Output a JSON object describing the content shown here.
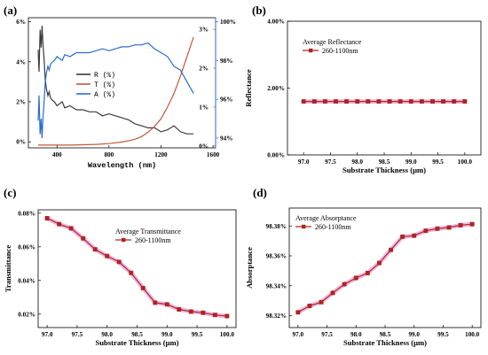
{
  "colors": {
    "R": "#3a3a3a",
    "T": "#c0573a",
    "A": "#2d6bd0",
    "dark_red": "#a52a2a",
    "marker_fill": "#b22222",
    "halo": "#f2b8e0"
  },
  "chart_data": [
    {
      "id": "a",
      "panel_label": "(a)",
      "type": "line",
      "xlabel": "Wavelength (nm)",
      "xlim": [
        180,
        1620
      ],
      "xticks": [
        "400",
        "800",
        "1200",
        "1600"
      ],
      "left_axis": {
        "ylim": [
          -0.3,
          6.2
        ],
        "ticks": [
          "0%",
          "2%",
          "4%",
          "6%"
        ]
      },
      "t_axis": {
        "ylim": [
          -0.05,
          3.3
        ],
        "ticks": [
          "0%",
          "1%",
          "2%",
          "3%"
        ]
      },
      "a_axis": {
        "ylim": [
          93.5,
          100.2
        ],
        "ticks": [
          "94%",
          "96%",
          "98%",
          "100%"
        ]
      },
      "legend_position": "center",
      "series": [
        {
          "name": "R (%)",
          "axis": "left",
          "color": "#3a3a3a",
          "x": [
            255,
            262,
            270,
            278,
            285,
            292,
            300,
            310,
            320,
            330,
            340,
            350,
            360,
            380,
            400,
            420,
            440,
            460,
            500,
            550,
            600,
            650,
            700,
            750,
            800,
            850,
            900,
            950,
            1000,
            1050,
            1100,
            1150,
            1200,
            1250,
            1300,
            1350,
            1400,
            1450
          ],
          "y": [
            4.6,
            3.5,
            5.6,
            4.7,
            5.8,
            4.9,
            4.2,
            3.1,
            2.6,
            2.3,
            2.5,
            2.2,
            2.1,
            2.0,
            1.8,
            1.9,
            2.0,
            1.7,
            1.8,
            1.6,
            1.6,
            1.5,
            1.5,
            1.3,
            1.4,
            1.3,
            1.2,
            1.1,
            0.9,
            0.8,
            0.7,
            0.7,
            0.5,
            0.6,
            0.8,
            0.5,
            0.4,
            0.4
          ]
        },
        {
          "name": "T (%)",
          "axis": "t",
          "color": "#c0573a",
          "x": [
            255,
            300,
            400,
            500,
            600,
            700,
            800,
            900,
            950,
            1000,
            1050,
            1100,
            1150,
            1200,
            1250,
            1300,
            1350,
            1400,
            1450
          ],
          "y": [
            0.02,
            0.02,
            0.02,
            0.02,
            0.03,
            0.04,
            0.06,
            0.1,
            0.13,
            0.17,
            0.24,
            0.35,
            0.5,
            0.7,
            1.0,
            1.35,
            1.8,
            2.3,
            2.8
          ]
        },
        {
          "name": "A (%)",
          "axis": "a",
          "color": "#2d6bd0",
          "x": [
            255,
            262,
            270,
            278,
            285,
            292,
            300,
            310,
            320,
            330,
            340,
            350,
            360,
            380,
            400,
            420,
            440,
            460,
            500,
            550,
            600,
            650,
            700,
            750,
            800,
            850,
            900,
            950,
            1000,
            1050,
            1100,
            1150,
            1200,
            1250,
            1300,
            1350,
            1400,
            1450
          ],
          "y": [
            94.9,
            96.2,
            94.2,
            95.0,
            94.0,
            95.0,
            95.8,
            96.9,
            97.4,
            97.7,
            97.5,
            97.8,
            97.9,
            98.0,
            98.2,
            98.1,
            98.0,
            98.3,
            98.2,
            98.4,
            98.4,
            98.4,
            98.5,
            98.6,
            98.5,
            98.6,
            98.7,
            98.7,
            98.8,
            98.8,
            98.9,
            98.6,
            98.4,
            98.2,
            97.7,
            97.5,
            96.9,
            96.3
          ]
        }
      ]
    },
    {
      "id": "b",
      "panel_label": "(b)",
      "type": "line",
      "xlabel": "Substrate Thickness (μm)",
      "ylabel": "Reflectance",
      "xlim": [
        96.7,
        100.3
      ],
      "ylim": [
        0.0,
        4.0
      ],
      "xticks": [
        "97.0",
        "97.5",
        "98.0",
        "98.5",
        "99.0",
        "99.5",
        "100.0"
      ],
      "yticks": [
        "0.00%",
        "2.00%",
        "4.00%"
      ],
      "legend_title": "Average Reflectance",
      "legend_position": "top-left",
      "series": [
        {
          "name": "260-1100nm",
          "x": [
            97.0,
            97.2,
            97.4,
            97.6,
            97.8,
            98.0,
            98.2,
            98.4,
            98.6,
            98.8,
            99.0,
            99.2,
            99.4,
            99.6,
            99.8,
            100.0
          ],
          "y": [
            1.6,
            1.6,
            1.6,
            1.6,
            1.6,
            1.6,
            1.6,
            1.6,
            1.6,
            1.6,
            1.6,
            1.6,
            1.6,
            1.6,
            1.6,
            1.6
          ]
        }
      ]
    },
    {
      "id": "c",
      "panel_label": "(c)",
      "type": "line",
      "xlabel": "Substrate Thickness (μm)",
      "ylabel": "Transmittance",
      "xlim": [
        96.85,
        100.15
      ],
      "ylim": [
        0.012,
        0.082
      ],
      "xticks": [
        "97.0",
        "97.5",
        "98.0",
        "98.5",
        "99.0",
        "99.5",
        "100.0"
      ],
      "yticks": [
        "0.02%",
        "0.04%",
        "0.06%",
        "0.08%"
      ],
      "legend_title": "Average Transmittance",
      "legend_position": "top-right",
      "series": [
        {
          "name": "260-1100nm",
          "x": [
            97.0,
            97.2,
            97.4,
            97.6,
            97.8,
            98.0,
            98.2,
            98.4,
            98.6,
            98.8,
            99.0,
            99.2,
            99.4,
            99.6,
            99.8,
            100.0
          ],
          "y": [
            0.077,
            0.0735,
            0.071,
            0.065,
            0.0585,
            0.0545,
            0.051,
            0.0445,
            0.0355,
            0.0268,
            0.0258,
            0.0228,
            0.0215,
            0.0208,
            0.0195,
            0.0188
          ]
        }
      ]
    },
    {
      "id": "d",
      "panel_label": "(d)",
      "type": "line",
      "xlabel": "Substrate Thickness (μm)",
      "ylabel": "Absorptance",
      "xlim": [
        96.85,
        100.15
      ],
      "ylim": [
        98.312,
        98.392
      ],
      "xticks": [
        "97.0",
        "97.5",
        "98.0",
        "98.5",
        "99.0",
        "99.5",
        "100.0"
      ],
      "yticks": [
        "98.32%",
        "98.34%",
        "98.36%",
        "98.38%"
      ],
      "legend_title": "Average Absorptance",
      "legend_position": "top-left",
      "series": [
        {
          "name": "260-1100nm",
          "x": [
            97.0,
            97.2,
            97.4,
            97.6,
            97.8,
            98.0,
            98.2,
            98.4,
            98.6,
            98.8,
            99.0,
            99.2,
            99.4,
            99.6,
            99.8,
            100.0
          ],
          "y": [
            98.3222,
            98.3265,
            98.329,
            98.3352,
            98.341,
            98.3452,
            98.3485,
            98.3552,
            98.364,
            98.3728,
            98.3735,
            98.3768,
            98.3782,
            98.379,
            98.3805,
            98.3812
          ]
        }
      ]
    }
  ]
}
